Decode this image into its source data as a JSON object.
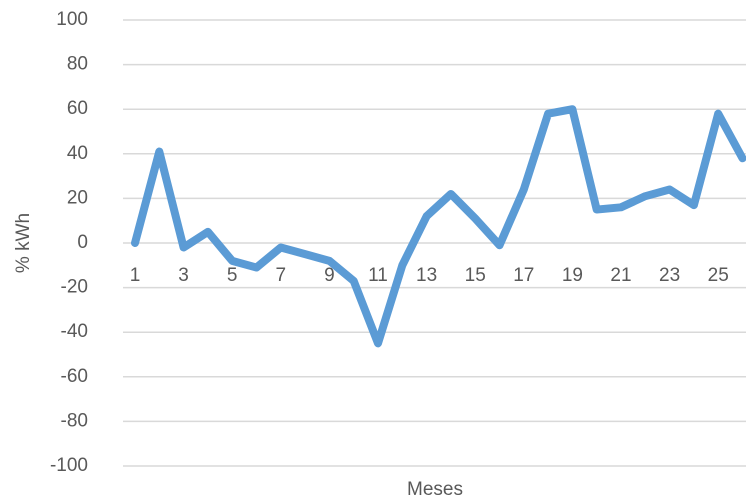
{
  "chart_data": {
    "type": "line",
    "x_label": "Meses",
    "y_label": "% kWh",
    "categories": [
      "1",
      null,
      "3",
      null,
      "5",
      null,
      "7",
      null,
      "9",
      null,
      "11",
      null,
      "13",
      null,
      "15",
      null,
      "17",
      null,
      "19",
      null,
      "21",
      null,
      "23",
      null,
      "25",
      null
    ],
    "series": [
      {
        "name": "% kWh",
        "color": "#5b9bd5",
        "values": [
          0,
          41,
          -2,
          5,
          -8,
          -11,
          -2,
          -5,
          -8,
          -17,
          -45,
          -10,
          12,
          22,
          11,
          -1,
          24,
          58,
          60,
          15,
          16,
          21,
          24,
          17,
          58,
          38
        ]
      }
    ],
    "ylim": [
      -100,
      100
    ],
    "yticks": [
      -100,
      -80,
      -60,
      -40,
      -20,
      0,
      20,
      40,
      60,
      80,
      100
    ],
    "grid": true
  }
}
